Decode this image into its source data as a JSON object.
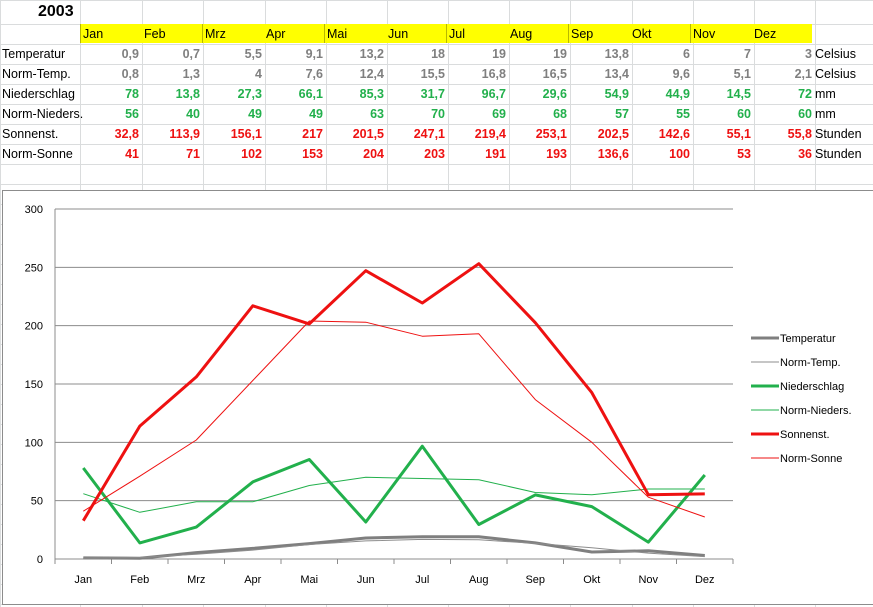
{
  "sheet": {
    "title": "2003",
    "months": [
      "Jan",
      "Feb",
      "Mrz",
      "Apr",
      "Mai",
      "Jun",
      "Jul",
      "Aug",
      "Sep",
      "Okt",
      "Nov",
      "Dez"
    ],
    "rows": [
      {
        "label": "Temperatur",
        "unit": "Celsius",
        "color": "#7f7f7f",
        "values": [
          "0,9",
          "0,7",
          "5,5",
          "9,1",
          "13,2",
          "18",
          "19",
          "19",
          "13,8",
          "6",
          "7",
          "3"
        ]
      },
      {
        "label": "Norm-Temp.",
        "unit": "Celsius",
        "color": "#7f7f7f",
        "values": [
          "0,8",
          "1,3",
          "4",
          "7,6",
          "12,4",
          "15,5",
          "16,8",
          "16,5",
          "13,4",
          "9,6",
          "5,1",
          "2,1"
        ]
      },
      {
        "label": "Niederschlag",
        "unit": "mm",
        "color": "#22b04c",
        "values": [
          "78",
          "13,8",
          "27,3",
          "66,1",
          "85,3",
          "31,7",
          "96,7",
          "29,6",
          "54,9",
          "44,9",
          "14,5",
          "72"
        ]
      },
      {
        "label": "Norm-Nieders.",
        "unit": "mm",
        "color": "#22b04c",
        "values": [
          "56",
          "40",
          "49",
          "49",
          "63",
          "70",
          "69",
          "68",
          "57",
          "55",
          "60",
          "60"
        ]
      },
      {
        "label": "Sonnenst.",
        "unit": "Stunden",
        "color": "#ee1111",
        "values": [
          "32,8",
          "113,9",
          "156,1",
          "217",
          "201,5",
          "247,1",
          "219,4",
          "253,1",
          "202,5",
          "142,6",
          "55,1",
          "55,8"
        ]
      },
      {
        "label": "Norm-Sonne",
        "unit": "Stunden",
        "color": "#ee1111",
        "values": [
          "41",
          "71",
          "102",
          "153",
          "204",
          "203",
          "191",
          "193",
          "136,6",
          "100",
          "53",
          "36"
        ]
      }
    ]
  },
  "chart_data": {
    "type": "line",
    "categories": [
      "Jan",
      "Feb",
      "Mrz",
      "Apr",
      "Mai",
      "Jun",
      "Jul",
      "Aug",
      "Sep",
      "Okt",
      "Nov",
      "Dez"
    ],
    "ylim": [
      0,
      300
    ],
    "yticks": [
      "0",
      "50",
      "100",
      "150",
      "200",
      "250",
      "300"
    ],
    "grid": true,
    "legend": "right",
    "series": [
      {
        "name": "Temperatur",
        "color": "#7f7f7f",
        "width": 3,
        "values": [
          0.9,
          0.7,
          5.5,
          9.1,
          13.2,
          18,
          19,
          19,
          13.8,
          6,
          7,
          3
        ]
      },
      {
        "name": "Norm-Temp.",
        "color": "#8c8c8c",
        "width": 1,
        "values": [
          0.8,
          1.3,
          4,
          7.6,
          12.4,
          15.5,
          16.8,
          16.5,
          13.4,
          9.6,
          5.1,
          2.1
        ]
      },
      {
        "name": "Niederschlag",
        "color": "#22b04c",
        "width": 3,
        "values": [
          78,
          13.8,
          27.3,
          66.1,
          85.3,
          31.7,
          96.7,
          29.6,
          54.9,
          44.9,
          14.5,
          72
        ]
      },
      {
        "name": "Norm-Nieders.",
        "color": "#22b04c",
        "width": 1,
        "values": [
          56,
          40,
          49,
          49,
          63,
          70,
          69,
          68,
          57,
          55,
          60,
          60
        ]
      },
      {
        "name": "Sonnenst.",
        "color": "#ee1111",
        "width": 3,
        "values": [
          32.8,
          113.9,
          156.1,
          217,
          201.5,
          247.1,
          219.4,
          253.1,
          202.5,
          142.6,
          55.1,
          55.8
        ]
      },
      {
        "name": "Norm-Sonne",
        "color": "#ee1111",
        "width": 1,
        "values": [
          41,
          71,
          102,
          153,
          204,
          203,
          191,
          193,
          136.6,
          100,
          53,
          36
        ]
      }
    ]
  }
}
